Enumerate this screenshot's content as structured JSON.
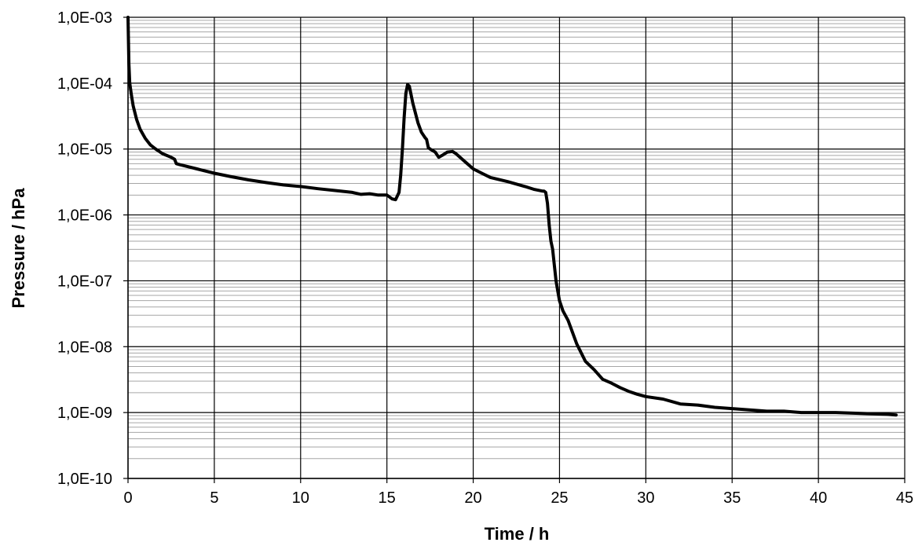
{
  "chart_data": {
    "type": "line",
    "title": "",
    "xlabel": "Time / h",
    "ylabel": "Pressure / hPa",
    "xlim": [
      0,
      45
    ],
    "ylim": [
      1e-10,
      0.001
    ],
    "y_scale": "log",
    "grid": true,
    "legend": "none",
    "x_ticks": [
      "0",
      "5",
      "10",
      "15",
      "20",
      "25",
      "30",
      "35",
      "40",
      "45"
    ],
    "y_ticks": [
      "1,0E-10",
      "1,0E-09",
      "1,0E-08",
      "1,0E-07",
      "1,0E-06",
      "1,0E-05",
      "1,0E-04",
      "1,0E-03"
    ],
    "series": [
      {
        "color": "#000000",
        "x": [
          0,
          0.05,
          0.1,
          0.2,
          0.3,
          0.5,
          0.7,
          1.0,
          1.3,
          1.6,
          2.0,
          2.5,
          2.7,
          2.8,
          3.0,
          4.0,
          5.0,
          6.0,
          7.0,
          8.0,
          9.0,
          10.0,
          11.0,
          12.0,
          13.0,
          13.5,
          14.0,
          14.5,
          15.0,
          15.3,
          15.5,
          15.7,
          15.8,
          15.9,
          16.0,
          16.1,
          16.2,
          16.3,
          16.5,
          16.8,
          17.0,
          17.2,
          17.3,
          17.4,
          17.5,
          17.8,
          18.0,
          18.2,
          18.5,
          18.8,
          19.0,
          19.5,
          20.0,
          20.5,
          21.0,
          22.0,
          23.0,
          23.5,
          24.0,
          24.1,
          24.2,
          24.3,
          24.4,
          24.5,
          24.6,
          24.7,
          24.8,
          24.9,
          25.0,
          25.2,
          25.5,
          26.0,
          26.5,
          27.0,
          27.5,
          28.0,
          28.5,
          29.0,
          29.5,
          30.0,
          31.0,
          32.0,
          33.0,
          34.0,
          35.0,
          36.0,
          37.0,
          38.0,
          39.0,
          40.0,
          41.0,
          42.0,
          43.0,
          44.0,
          44.5
        ],
        "y": [
          0.001,
          0.0002,
          0.0001,
          6.5e-05,
          4.5e-05,
          2.8e-05,
          2e-05,
          1.45e-05,
          1.15e-05,
          1e-05,
          8.5e-06,
          7.5e-06,
          7e-06,
          6e-06,
          5.8e-06,
          5e-06,
          4.3e-06,
          3.8e-06,
          3.4e-06,
          3.1e-06,
          2.85e-06,
          2.7e-06,
          2.5e-06,
          2.35e-06,
          2.2e-06,
          2.05e-06,
          2.1e-06,
          2e-06,
          2e-06,
          1.75e-06,
          1.7e-06,
          2.2e-06,
          4e-06,
          1e-05,
          3e-05,
          7e-05,
          9.5e-05,
          9e-05,
          5e-05,
          2.5e-05,
          1.8e-05,
          1.5e-05,
          1.4e-05,
          1.05e-05,
          1e-05,
          9e-06,
          7.5e-06,
          8e-06,
          9e-06,
          9.2e-06,
          8.5e-06,
          6.5e-06,
          5e-06,
          4.3e-06,
          3.7e-06,
          3.2e-06,
          2.7e-06,
          2.45e-06,
          2.3e-06,
          2.3e-06,
          2.2e-06,
          1.5e-06,
          7e-07,
          4e-07,
          3e-07,
          1.7e-07,
          1e-07,
          7e-08,
          5e-08,
          3.5e-08,
          2.5e-08,
          1.1e-08,
          6e-09,
          4.5e-09,
          3.2e-09,
          2.8e-09,
          2.4e-09,
          2.1e-09,
          1.9e-09,
          1.75e-09,
          1.6e-09,
          1.35e-09,
          1.3e-09,
          1.2e-09,
          1.15e-09,
          1.1e-09,
          1.05e-09,
          1.05e-09,
          1e-09,
          1e-09,
          1e-09,
          9.8e-10,
          9.6e-10,
          9.4e-10,
          9.2e-10
        ]
      }
    ]
  }
}
